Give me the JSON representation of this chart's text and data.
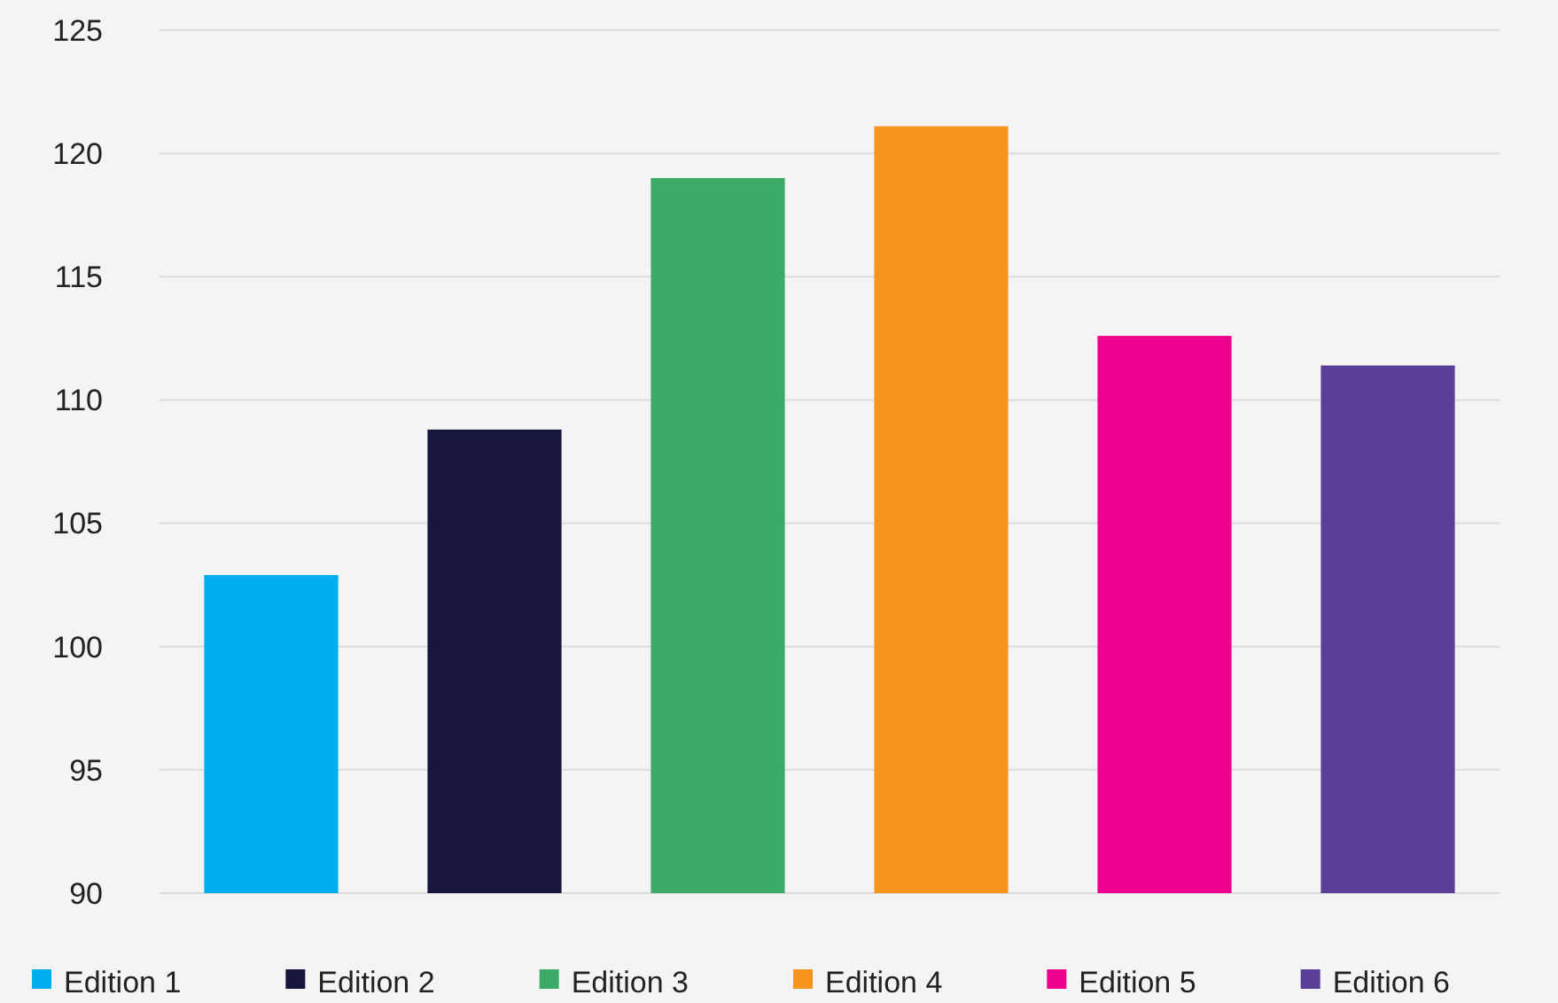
{
  "chart_data": {
    "type": "bar",
    "categories": [
      null,
      null,
      null,
      null,
      null,
      null
    ],
    "series": [
      {
        "name": "Edition 1",
        "color": "#00adef",
        "values": [
          102.9,
          null,
          null,
          null,
          null,
          null
        ]
      },
      {
        "name": "Edition 2",
        "color": "#16153e",
        "values": [
          null,
          108.8,
          null,
          null,
          null,
          null
        ]
      },
      {
        "name": "Edition 3",
        "color": "#3dab68",
        "values": [
          null,
          null,
          119.0,
          null,
          null,
          null
        ]
      },
      {
        "name": "Edition 4",
        "color": "#f7941d",
        "values": [
          null,
          null,
          null,
          121.1,
          null,
          null
        ]
      },
      {
        "name": "Edition 5",
        "color": "#ec008c",
        "values": [
          null,
          null,
          null,
          null,
          112.6,
          null
        ]
      },
      {
        "name": "Edition 6",
        "color": "#5a3f99",
        "values": [
          null,
          null,
          null,
          null,
          null,
          111.4
        ]
      }
    ],
    "ylim": [
      90,
      125
    ],
    "yticks": [
      90,
      95,
      100,
      105,
      110,
      115,
      120,
      125
    ],
    "grid": "y",
    "legend": "bottom"
  }
}
